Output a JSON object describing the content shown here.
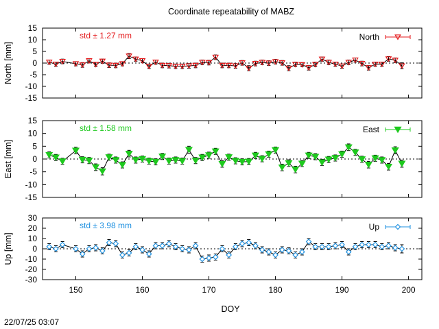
{
  "page": {
    "title": "Coordinate repeatability of MABZ",
    "timestamp": "22/07/25 03:07"
  },
  "chart_data": [
    {
      "type": "line",
      "name": "north",
      "legend_label": "North",
      "legend_position": "top-right",
      "stat_label": "std ± 1.27 mm",
      "color": "#e41a1c",
      "marker": "triangle-down-open",
      "ylabel": "North [mm]",
      "ylim": [
        -15,
        15
      ],
      "yticks": [
        15,
        10,
        5,
        0,
        -5,
        -10,
        -15
      ],
      "xlim": [
        145,
        202
      ],
      "x": [
        146,
        147,
        148,
        150,
        151,
        152,
        153,
        154,
        155,
        156,
        157,
        158,
        159,
        160,
        161,
        162,
        163,
        164,
        165,
        166,
        167,
        168,
        169,
        170,
        171,
        172,
        173,
        174,
        175,
        176,
        177,
        178,
        179,
        180,
        181,
        182,
        183,
        184,
        185,
        186,
        187,
        188,
        189,
        190,
        191,
        192,
        193,
        194,
        195,
        196,
        197,
        198,
        199
      ],
      "values": [
        0.4,
        -0.5,
        0.7,
        -0.3,
        -0.8,
        1.0,
        -0.6,
        0.8,
        -0.9,
        -1.0,
        -0.3,
        3.0,
        1.7,
        1.0,
        -1.4,
        0.4,
        -1.0,
        -1.1,
        -1.4,
        -1.4,
        -1.2,
        -1.0,
        0.3,
        0.2,
        2.5,
        -1.0,
        -1.0,
        -1.2,
        0.1,
        -2.2,
        -0.2,
        0.3,
        0.0,
        0.6,
        0.1,
        -2.2,
        -0.6,
        -0.7,
        -2.0,
        -0.6,
        1.7,
        0.3,
        -0.5,
        -1.3,
        0.3,
        1.3,
        -0.2,
        -2.0,
        -0.5,
        -0.5,
        1.8,
        1.2,
        -1.2
      ],
      "errors": [
        0.9,
        0.9,
        1.0,
        0.9,
        1.0,
        0.9,
        0.9,
        0.9,
        1.0,
        1.0,
        0.9,
        1.1,
        0.9,
        0.9,
        1.0,
        0.9,
        1.0,
        1.0,
        1.0,
        1.0,
        1.0,
        1.0,
        1.0,
        1.0,
        1.0,
        1.0,
        1.0,
        1.0,
        1.0,
        1.1,
        1.0,
        1.0,
        1.0,
        1.0,
        1.0,
        1.1,
        1.0,
        0.9,
        1.0,
        1.0,
        0.9,
        1.0,
        0.9,
        0.9,
        1.0,
        0.9,
        1.0,
        1.0,
        0.9,
        0.9,
        1.0,
        1.0,
        1.3
      ]
    },
    {
      "type": "line",
      "name": "east",
      "legend_label": "East",
      "legend_position": "top-right",
      "stat_label": "std ± 1.58 mm",
      "color": "#1ec91e",
      "marker": "triangle-down-filled",
      "ylabel": "East [mm]",
      "ylim": [
        -15,
        15
      ],
      "yticks": [
        15,
        10,
        5,
        0,
        -5,
        -10,
        -15
      ],
      "xlim": [
        145,
        202
      ],
      "x": [
        146,
        147,
        148,
        150,
        151,
        152,
        153,
        154,
        155,
        156,
        157,
        158,
        159,
        160,
        161,
        162,
        163,
        164,
        165,
        166,
        167,
        168,
        169,
        170,
        171,
        172,
        173,
        174,
        175,
        176,
        177,
        178,
        179,
        180,
        181,
        182,
        183,
        184,
        185,
        186,
        187,
        188,
        189,
        190,
        191,
        192,
        193,
        194,
        195,
        196,
        197,
        198,
        199
      ],
      "values": [
        1.6,
        0.6,
        -0.9,
        3.3,
        -0.3,
        -0.6,
        -3.2,
        -4.8,
        0.7,
        -0.4,
        -2.3,
        2.1,
        -0.4,
        0.0,
        -0.8,
        -1.1,
        1.0,
        -0.8,
        -0.4,
        -0.8,
        3.6,
        -0.6,
        0.6,
        1.5,
        3.0,
        -1.9,
        0.7,
        -0.7,
        -1.1,
        -1.0,
        1.4,
        0.1,
        1.9,
        3.5,
        -3.3,
        -1.6,
        -4.1,
        -1.8,
        1.4,
        0.9,
        -1.3,
        -0.2,
        0.4,
        1.9,
        4.6,
        2.6,
        -0.1,
        -2.2,
        0.3,
        -0.4,
        -3.0,
        3.4,
        -1.8
      ],
      "errors": [
        1.2,
        1.2,
        1.2,
        1.3,
        1.2,
        1.2,
        1.3,
        1.4,
        1.2,
        1.2,
        1.2,
        1.3,
        1.2,
        1.2,
        1.2,
        1.2,
        1.2,
        1.2,
        1.2,
        1.2,
        1.4,
        1.2,
        1.2,
        1.2,
        1.2,
        1.3,
        1.2,
        1.2,
        1.2,
        1.2,
        1.2,
        1.2,
        1.2,
        1.2,
        1.3,
        1.3,
        1.3,
        1.2,
        1.2,
        1.2,
        1.2,
        1.2,
        1.2,
        1.2,
        1.3,
        1.2,
        1.2,
        1.3,
        1.2,
        1.2,
        1.3,
        1.4,
        1.4
      ]
    },
    {
      "type": "line",
      "name": "up",
      "legend_label": "Up",
      "legend_position": "top-right",
      "stat_label": "std ± 3.98 mm",
      "color": "#1e90e0",
      "marker": "diamond-open",
      "ylabel": "Up [mm]",
      "ylim": [
        -30,
        30
      ],
      "yticks": [
        30,
        20,
        10,
        0,
        -10,
        -20,
        -30
      ],
      "xlim": [
        145,
        202
      ],
      "x": [
        146,
        147,
        148,
        150,
        151,
        152,
        153,
        154,
        155,
        156,
        157,
        158,
        159,
        160,
        161,
        162,
        163,
        164,
        165,
        166,
        167,
        168,
        169,
        170,
        171,
        172,
        173,
        174,
        175,
        176,
        177,
        178,
        179,
        180,
        181,
        182,
        183,
        184,
        185,
        186,
        187,
        188,
        189,
        190,
        191,
        192,
        193,
        194,
        195,
        196,
        197,
        198,
        199
      ],
      "values": [
        2,
        0,
        4,
        0,
        -5,
        0,
        1,
        -2,
        6,
        5,
        -6,
        -4,
        2,
        -1,
        -5,
        3,
        3,
        5,
        2,
        0,
        -1,
        3,
        -10,
        -9,
        -8,
        0,
        -6,
        2,
        5,
        6,
        3,
        -1,
        -3,
        -6,
        -1,
        -2,
        -6,
        -3,
        7,
        2,
        2,
        2,
        3,
        4,
        -3,
        2,
        4,
        4,
        4,
        2,
        3,
        1,
        0
      ],
      "errors": [
        3,
        3,
        3,
        3,
        3,
        3,
        3,
        3,
        3,
        3,
        3,
        3,
        3,
        3,
        3,
        3,
        3,
        3,
        3,
        3,
        3,
        3,
        3,
        3,
        3,
        3,
        3,
        3,
        3,
        3,
        3,
        3,
        3,
        3,
        3,
        3,
        3,
        3,
        3,
        3,
        3,
        3,
        3,
        3,
        3,
        3,
        3,
        3,
        3,
        3,
        3,
        3,
        4
      ]
    }
  ],
  "shared_x": {
    "xlabel": "DOY",
    "ticks": [
      150,
      160,
      170,
      180,
      190,
      200
    ]
  }
}
